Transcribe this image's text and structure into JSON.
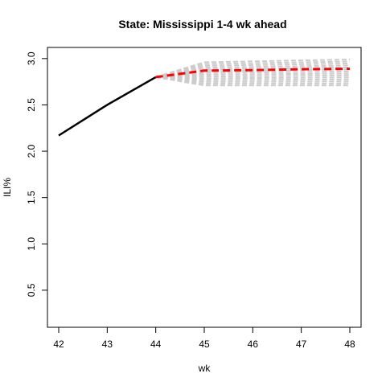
{
  "chart_data": {
    "type": "line",
    "title": "State: Mississippi 1-4 wk ahead",
    "xlabel": "wk",
    "ylabel": "ILI%",
    "xlim": [
      42,
      48
    ],
    "ylim": [
      0.1,
      3.12
    ],
    "x_ticks": [
      "42",
      "43",
      "44",
      "45",
      "46",
      "47",
      "48"
    ],
    "y_ticks": [
      "0.5",
      "1.0",
      "1.5",
      "2.0",
      "2.5",
      "3.0"
    ],
    "grid": false,
    "legend": "none",
    "series": [
      {
        "role": "observed",
        "color": "#000000",
        "style": "solid",
        "x": [
          42,
          43,
          44
        ],
        "y": [
          2.17,
          2.5,
          2.8
        ]
      },
      {
        "role": "forecast-mean",
        "color": "#ff0000",
        "style": "dashed",
        "x": [
          44,
          45,
          46,
          47,
          48
        ],
        "y": [
          2.8,
          2.87,
          2.875,
          2.885,
          2.89
        ]
      }
    ],
    "ensemble": {
      "color": "#cccccc",
      "style": "dashed",
      "x": [
        44,
        45,
        46,
        47,
        48
      ],
      "start": 2.8,
      "upper": [
        2.8,
        2.96,
        2.97,
        2.98,
        2.99
      ],
      "lower": [
        2.8,
        2.71,
        2.71,
        2.71,
        2.71
      ]
    }
  }
}
